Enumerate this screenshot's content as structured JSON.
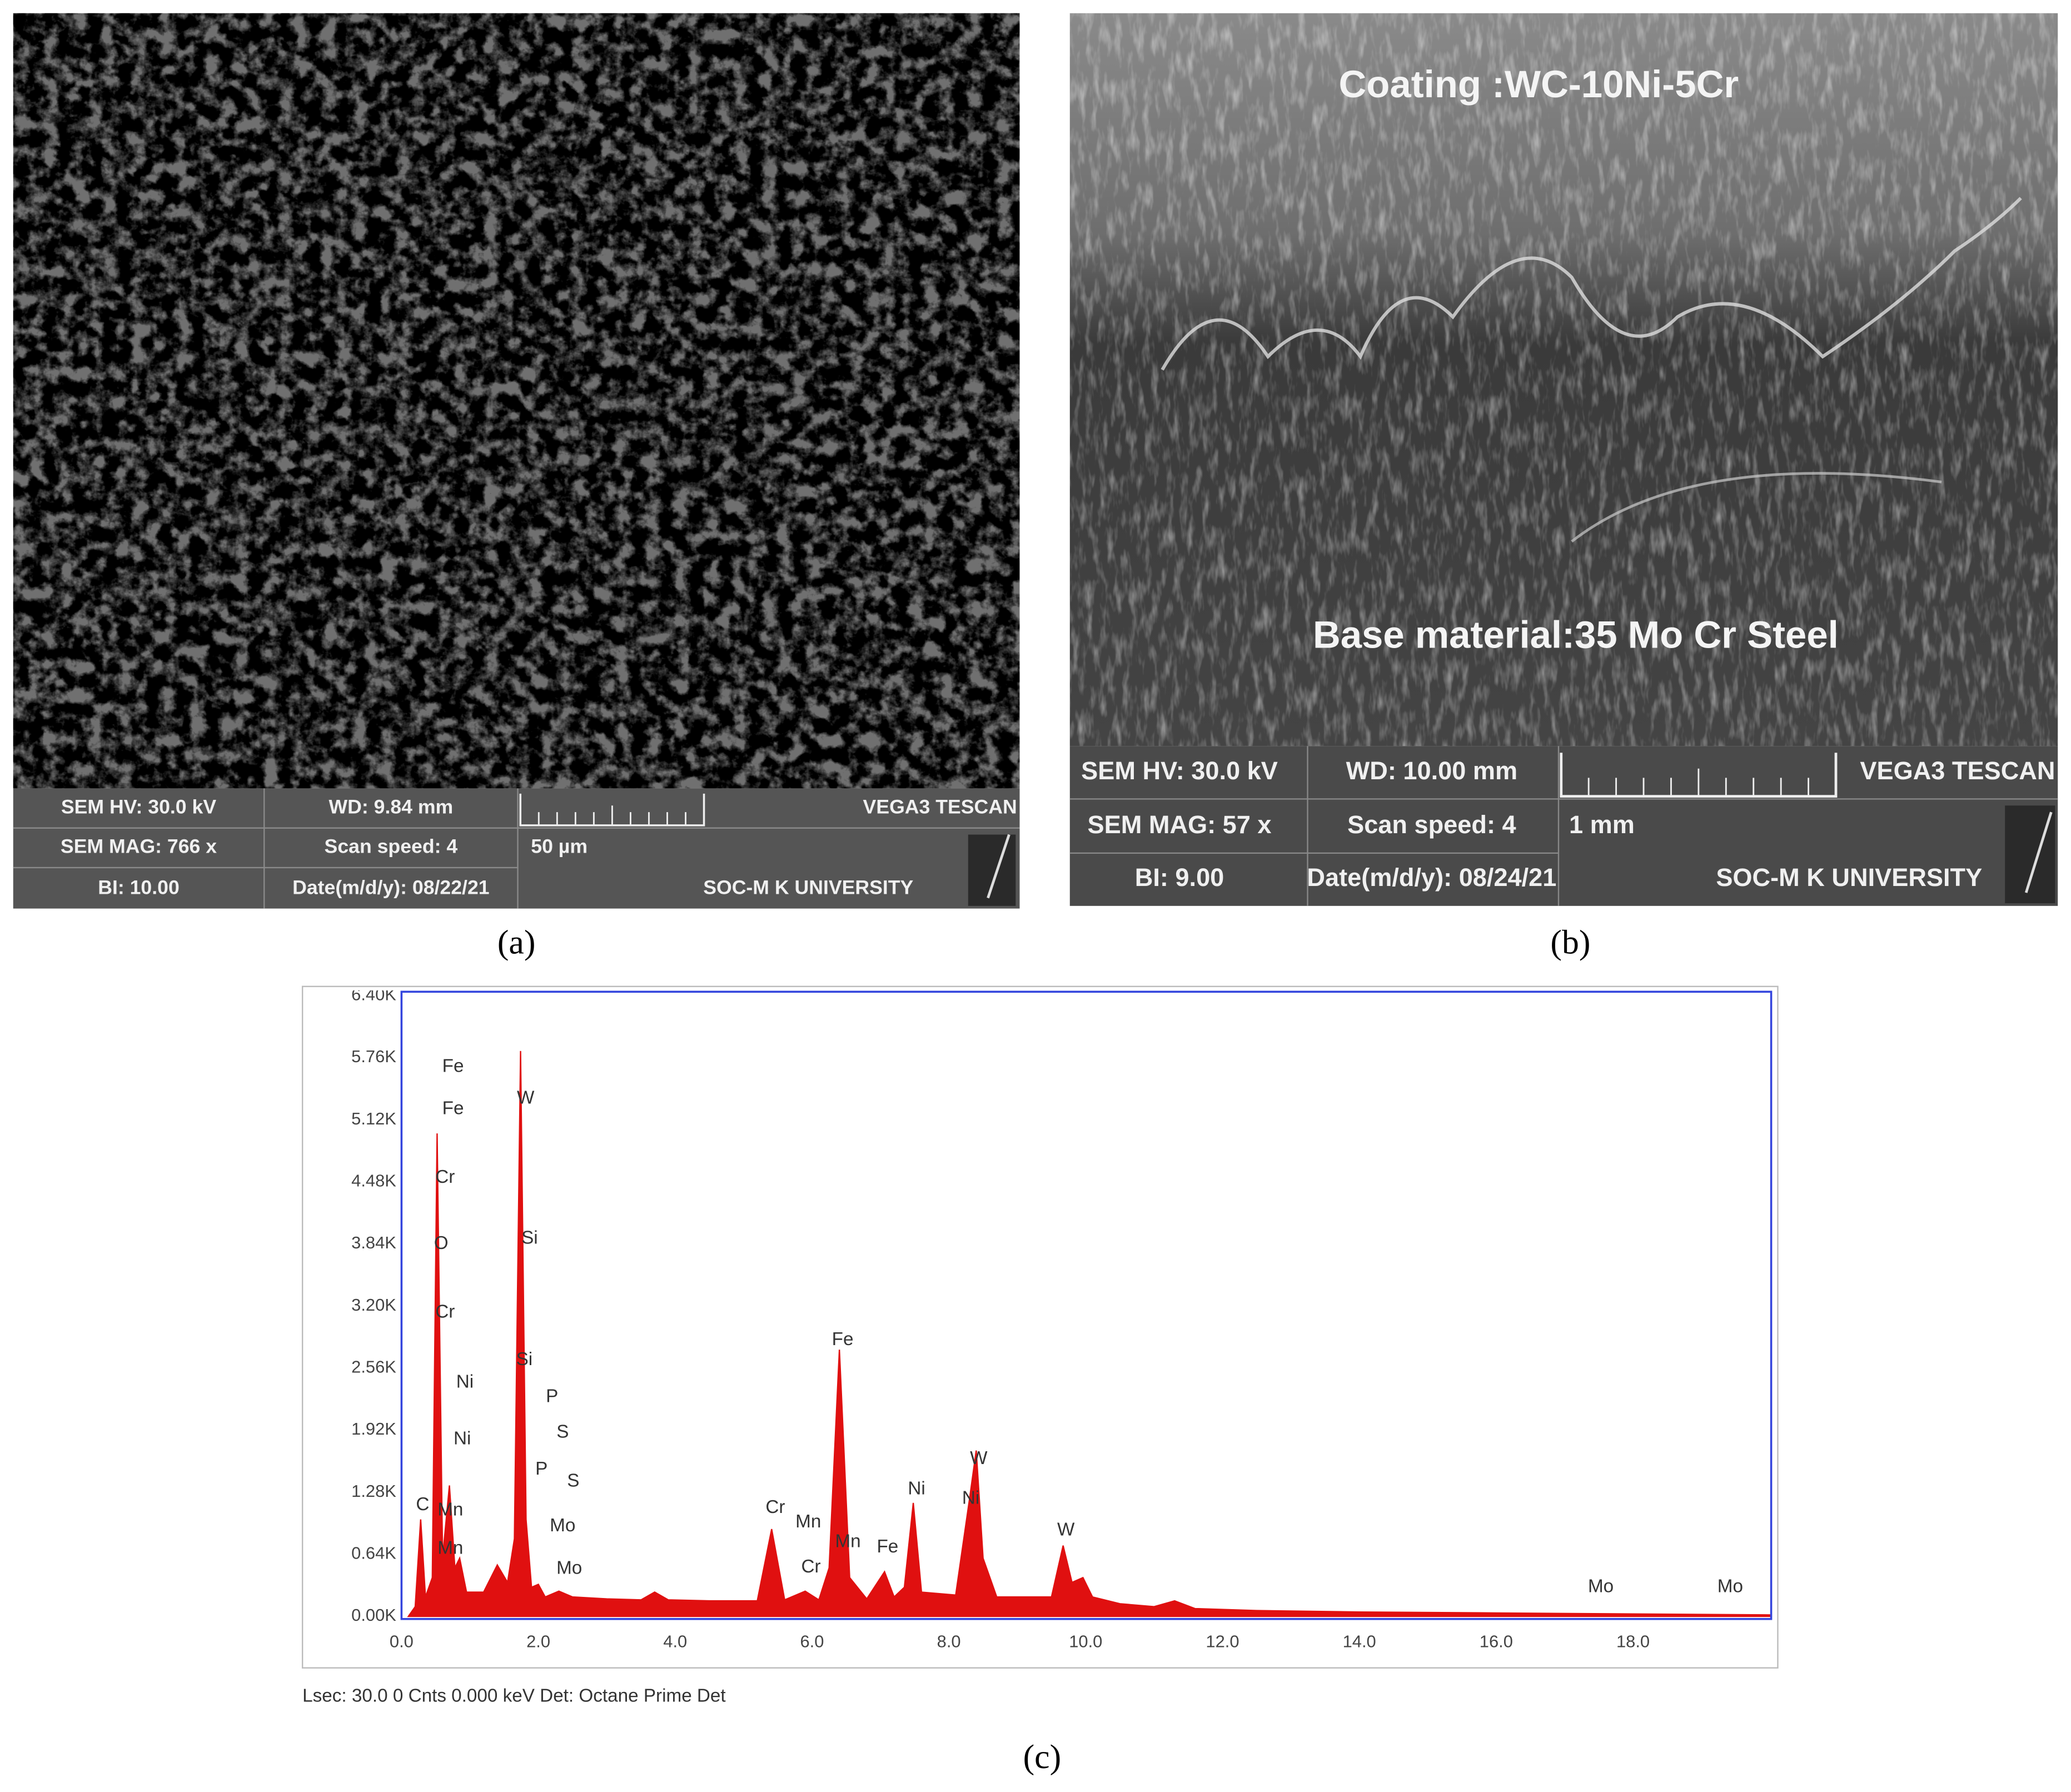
{
  "panel_a": {
    "info": [
      "SEM HV: 30.0 kV",
      "WD: 9.84 mm",
      "VEGA3 TESCAN",
      "SEM MAG: 766 x",
      "Scan speed: 4",
      "50 µm",
      "BI: 10.00",
      "Date(m/d/y): 08/22/21",
      "SOC-M K UNIVERSITY"
    ],
    "caption": "(a)"
  },
  "panel_b": {
    "labels": [
      "Coating :WC-10Ni-5Cr",
      "Base material:35 Mo Cr Steel"
    ],
    "info": [
      "SEM HV: 30.0 kV",
      "WD: 10.00 mm",
      "VEGA3 TESCAN",
      "SEM MAG: 57 x",
      "Scan speed: 4",
      "1 mm",
      "BI: 9.00",
      "Date(m/d/y): 08/24/21",
      "SOC-M K UNIVERSITY"
    ],
    "caption": "(b)"
  },
  "panel_c": {
    "caption": "(c)"
  },
  "chart_data": {
    "type": "area",
    "color": "#e01010",
    "x": [
      0.1,
      0.2,
      0.28,
      0.35,
      0.45,
      0.52,
      0.6,
      0.7,
      0.78,
      0.85,
      0.95,
      1.2,
      1.4,
      1.55,
      1.65,
      1.74,
      1.82,
      1.9,
      2.0,
      2.1,
      2.3,
      2.5,
      3.0,
      3.5,
      3.7,
      3.9,
      4.5,
      5.2,
      5.41,
      5.6,
      5.9,
      6.1,
      6.25,
      6.4,
      6.55,
      6.8,
      7.06,
      7.2,
      7.35,
      7.48,
      7.6,
      8.1,
      8.3,
      8.4,
      8.5,
      8.7,
      9.5,
      9.67,
      9.8,
      9.96,
      10.1,
      10.5,
      11.0,
      11.3,
      11.6,
      12.5,
      14,
      16,
      18,
      20
    ],
    "values": [
      0,
      100,
      1000,
      200,
      400,
      4980,
      600,
      1350,
      500,
      600,
      250,
      250,
      530,
      350,
      800,
      5830,
      1000,
      300,
      330,
      200,
      260,
      200,
      180,
      170,
      250,
      170,
      160,
      160,
      900,
      170,
      260,
      170,
      500,
      2750,
      400,
      180,
      460,
      200,
      300,
      1170,
      250,
      220,
      1200,
      1710,
      600,
      200,
      200,
      730,
      350,
      400,
      200,
      130,
      100,
      160,
      80,
      60,
      45,
      35,
      25,
      15
    ],
    "xlim": [
      0,
      20
    ],
    "ylim": [
      0,
      6400
    ],
    "xticks": [
      {
        "value": 0,
        "label": "0.0"
      },
      {
        "value": 2,
        "label": "2.0"
      },
      {
        "value": 4,
        "label": "4.0"
      },
      {
        "value": 6,
        "label": "6.0"
      },
      {
        "value": 8,
        "label": "8.0"
      },
      {
        "value": 10,
        "label": "10.0"
      },
      {
        "value": 12,
        "label": "12.0"
      },
      {
        "value": 14,
        "label": "14.0"
      },
      {
        "value": 16,
        "label": "16.0"
      },
      {
        "value": 18,
        "label": "18.0"
      }
    ],
    "yticks": [
      {
        "value": 0,
        "label": "0.00K"
      },
      {
        "value": 640,
        "label": "0.64K"
      },
      {
        "value": 1280,
        "label": "1.28K"
      },
      {
        "value": 1920,
        "label": "1.92K"
      },
      {
        "value": 2560,
        "label": "2.56K"
      },
      {
        "value": 3200,
        "label": "3.20K"
      },
      {
        "value": 3840,
        "label": "3.84K"
      },
      {
        "value": 4480,
        "label": "4.48K"
      },
      {
        "value": 5120,
        "label": "5.12K"
      },
      {
        "value": 5760,
        "label": "5.76K"
      },
      {
        "value": 6400,
        "label": "6.40K"
      }
    ],
    "annotations": [
      "Fe",
      "Fe",
      "Cr",
      "O",
      "Cr",
      "Ni",
      "Ni",
      "C",
      "Mn",
      "Mn",
      "W",
      "Si",
      "Si",
      "P",
      "S",
      "P",
      "S",
      "Mo",
      "Mo",
      "Cr",
      "Mn",
      "Cr",
      "Mn",
      "Fe",
      "Fe",
      "Ni",
      "Ni",
      "W",
      "W",
      "Mo",
      "Mo"
    ],
    "footer": "Lsec: 30.0 0 Cnts  0.000 keV Det: Octane Prime Det"
  }
}
